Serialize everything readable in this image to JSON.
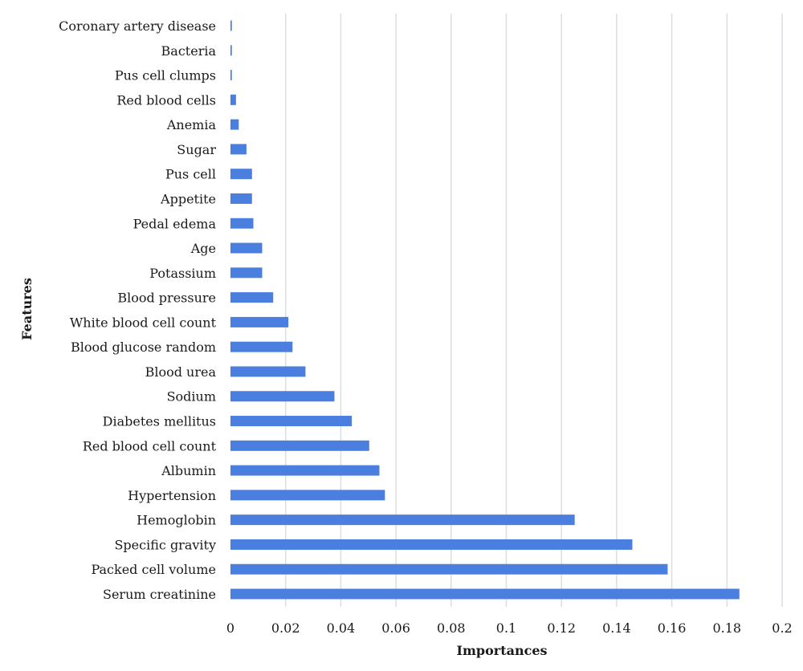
{
  "chart_data": {
    "type": "bar",
    "orientation": "horizontal",
    "title": "",
    "xlabel": "Importances",
    "ylabel": "Features",
    "xlim": [
      0,
      0.2
    ],
    "x_ticks": [
      0,
      0.02,
      0.04,
      0.06,
      0.08,
      0.1,
      0.12,
      0.14,
      0.16,
      0.18,
      0.2
    ],
    "x_tick_labels": [
      "0",
      "0.02",
      "0.04",
      "0.06",
      "0.08",
      "0.1",
      "0.12",
      "0.14",
      "0.16",
      "0.18",
      "0.2"
    ],
    "grid": "vertical",
    "legend": "none",
    "bar_color": "#4a7fe0",
    "categories": [
      "Coronary artery disease",
      "Bacteria",
      "Pus cell clumps",
      "Red blood cells",
      "Anemia",
      "Sugar",
      "Pus cell",
      "Appetite",
      "Pedal edema",
      "Age",
      "Potassium",
      "Blood pressure",
      "White blood cell count",
      "Blood glucose random",
      "Blood urea",
      "Sodium",
      "Diabetes mellitus",
      "Red blood cell count",
      "Albumin",
      "Hypertension",
      "Hemoglobin",
      "Specific gravity",
      "Packed cell volume",
      "Serum creatinine"
    ],
    "values": [
      0.0005,
      0.0005,
      0.0005,
      0.002,
      0.003,
      0.0058,
      0.0078,
      0.0078,
      0.0083,
      0.0115,
      0.0115,
      0.0155,
      0.021,
      0.0225,
      0.0272,
      0.0377,
      0.044,
      0.0503,
      0.054,
      0.056,
      0.1248,
      0.1457,
      0.1585,
      0.1845
    ]
  }
}
